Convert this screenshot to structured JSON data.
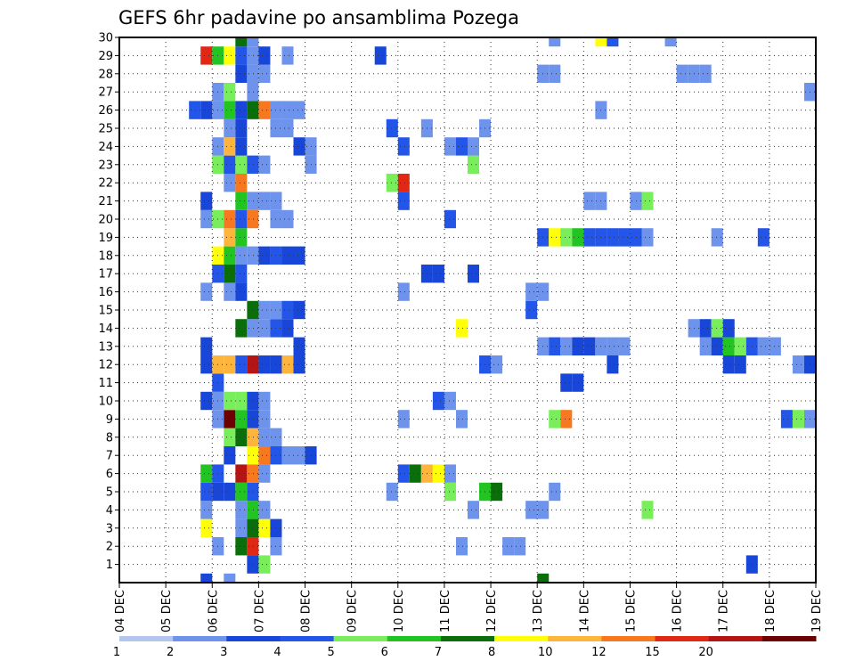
{
  "chart_data": {
    "type": "heatmap",
    "title": "GEFS 6hr padavine po ansamblima Pozega",
    "xlabel": "",
    "ylabel": "",
    "x_ticks": [
      "04 DEC",
      "05 DEC",
      "06 DEC",
      "07 DEC",
      "08 DEC",
      "09 DEC",
      "10 DEC",
      "11 DEC",
      "12 DEC",
      "13 DEC",
      "14 DEC",
      "15 DEC",
      "16 DEC",
      "17 DEC",
      "18 DEC",
      "19 DEC"
    ],
    "y_ticks": [
      "1",
      "2",
      "3",
      "4",
      "5",
      "6",
      "7",
      "8",
      "9",
      "10",
      "11",
      "12",
      "13",
      "14",
      "15",
      "16",
      "17",
      "18",
      "19",
      "20",
      "21",
      "22",
      "23",
      "24",
      "25",
      "26",
      "27",
      "28",
      "29",
      "30"
    ],
    "x_range_slots": [
      0,
      60
    ],
    "y_range_members": [
      0,
      30
    ],
    "grid": "dotted",
    "colorbar": {
      "levels": [
        "1",
        "2",
        "3",
        "4",
        "5",
        "6",
        "7",
        "8",
        "10",
        "12",
        "15",
        "20"
      ],
      "colors": [
        "#b4c6f0",
        "#6e93ec",
        "#1846d8",
        "#2255e8",
        "#78ee5a",
        "#22c422",
        "#0a6e0a",
        "#ffff0a",
        "#ffb53c",
        "#f7781e",
        "#e02814",
        "#b41414",
        "#6e0000"
      ]
    },
    "cells": [
      {
        "member": 1,
        "slot": 11,
        "bin": 2
      },
      {
        "member": 1,
        "slot": 12,
        "bin": 4
      },
      {
        "member": 1,
        "slot": 54,
        "bin": 2
      },
      {
        "member": 2,
        "slot": 8,
        "bin": 1
      },
      {
        "member": 2,
        "slot": 10,
        "bin": 6
      },
      {
        "member": 2,
        "slot": 11,
        "bin": 10
      },
      {
        "member": 2,
        "slot": 13,
        "bin": 1
      },
      {
        "member": 2,
        "slot": 29,
        "bin": 1
      },
      {
        "member": 2,
        "slot": 33,
        "bin": 1
      },
      {
        "member": 2,
        "slot": 34,
        "bin": 1
      },
      {
        "member": 3,
        "slot": 7,
        "bin": 7
      },
      {
        "member": 3,
        "slot": 10,
        "bin": 1
      },
      {
        "member": 3,
        "slot": 11,
        "bin": 6
      },
      {
        "member": 3,
        "slot": 12,
        "bin": 7
      },
      {
        "member": 3,
        "slot": 13,
        "bin": 2
      },
      {
        "member": 4,
        "slot": 7,
        "bin": 1
      },
      {
        "member": 4,
        "slot": 10,
        "bin": 1
      },
      {
        "member": 4,
        "slot": 11,
        "bin": 5
      },
      {
        "member": 4,
        "slot": 12,
        "bin": 1
      },
      {
        "member": 4,
        "slot": 30,
        "bin": 1
      },
      {
        "member": 4,
        "slot": 35,
        "bin": 1
      },
      {
        "member": 4,
        "slot": 36,
        "bin": 1
      },
      {
        "member": 4,
        "slot": 45,
        "bin": 4
      },
      {
        "member": 5,
        "slot": 7,
        "bin": 3
      },
      {
        "member": 5,
        "slot": 8,
        "bin": 2
      },
      {
        "member": 5,
        "slot": 9,
        "bin": 2
      },
      {
        "member": 5,
        "slot": 10,
        "bin": 5
      },
      {
        "member": 5,
        "slot": 11,
        "bin": 3
      },
      {
        "member": 5,
        "slot": 23,
        "bin": 1
      },
      {
        "member": 5,
        "slot": 28,
        "bin": 4
      },
      {
        "member": 5,
        "slot": 31,
        "bin": 5
      },
      {
        "member": 5,
        "slot": 32,
        "bin": 6
      },
      {
        "member": 5,
        "slot": 37,
        "bin": 1
      },
      {
        "member": 6,
        "slot": 7,
        "bin": 5
      },
      {
        "member": 6,
        "slot": 8,
        "bin": 3
      },
      {
        "member": 6,
        "slot": 10,
        "bin": 11
      },
      {
        "member": 6,
        "slot": 11,
        "bin": 9
      },
      {
        "member": 6,
        "slot": 12,
        "bin": 1
      },
      {
        "member": 6,
        "slot": 24,
        "bin": 3
      },
      {
        "member": 6,
        "slot": 25,
        "bin": 6
      },
      {
        "member": 6,
        "slot": 26,
        "bin": 8
      },
      {
        "member": 6,
        "slot": 27,
        "bin": 7
      },
      {
        "member": 6,
        "slot": 28,
        "bin": 1
      },
      {
        "member": 7,
        "slot": 9,
        "bin": 2
      },
      {
        "member": 7,
        "slot": 11,
        "bin": 7
      },
      {
        "member": 7,
        "slot": 12,
        "bin": 9
      },
      {
        "member": 7,
        "slot": 13,
        "bin": 3
      },
      {
        "member": 7,
        "slot": 14,
        "bin": 1
      },
      {
        "member": 7,
        "slot": 15,
        "bin": 1
      },
      {
        "member": 7,
        "slot": 16,
        "bin": 2
      },
      {
        "member": 8,
        "slot": 9,
        "bin": 4
      },
      {
        "member": 8,
        "slot": 10,
        "bin": 6
      },
      {
        "member": 8,
        "slot": 11,
        "bin": 8
      },
      {
        "member": 8,
        "slot": 12,
        "bin": 1
      },
      {
        "member": 8,
        "slot": 13,
        "bin": 1
      },
      {
        "member": 9,
        "slot": 8,
        "bin": 1
      },
      {
        "member": 9,
        "slot": 9,
        "bin": 12
      },
      {
        "member": 9,
        "slot": 10,
        "bin": 5
      },
      {
        "member": 9,
        "slot": 11,
        "bin": 2
      },
      {
        "member": 9,
        "slot": 12,
        "bin": 1
      },
      {
        "member": 9,
        "slot": 24,
        "bin": 1
      },
      {
        "member": 9,
        "slot": 29,
        "bin": 1
      },
      {
        "member": 9,
        "slot": 37,
        "bin": 4
      },
      {
        "member": 9,
        "slot": 38,
        "bin": 9
      },
      {
        "member": 9,
        "slot": 57,
        "bin": 3
      },
      {
        "member": 9,
        "slot": 58,
        "bin": 4
      },
      {
        "member": 9,
        "slot": 59,
        "bin": 1
      },
      {
        "member": 10,
        "slot": 7,
        "bin": 2
      },
      {
        "member": 10,
        "slot": 8,
        "bin": 1
      },
      {
        "member": 10,
        "slot": 9,
        "bin": 4
      },
      {
        "member": 10,
        "slot": 10,
        "bin": 4
      },
      {
        "member": 10,
        "slot": 11,
        "bin": 2
      },
      {
        "member": 10,
        "slot": 12,
        "bin": 1
      },
      {
        "member": 10,
        "slot": 27,
        "bin": 3
      },
      {
        "member": 10,
        "slot": 28,
        "bin": 1
      },
      {
        "member": 11,
        "slot": 8,
        "bin": 3
      },
      {
        "member": 11,
        "slot": 38,
        "bin": 2
      },
      {
        "member": 11,
        "slot": 39,
        "bin": 2
      },
      {
        "member": 12,
        "slot": 7,
        "bin": 2
      },
      {
        "member": 12,
        "slot": 8,
        "bin": 8
      },
      {
        "member": 12,
        "slot": 9,
        "bin": 8
      },
      {
        "member": 12,
        "slot": 10,
        "bin": 3
      },
      {
        "member": 12,
        "slot": 11,
        "bin": 11
      },
      {
        "member": 12,
        "slot": 12,
        "bin": 2
      },
      {
        "member": 12,
        "slot": 13,
        "bin": 2
      },
      {
        "member": 12,
        "slot": 14,
        "bin": 8
      },
      {
        "member": 12,
        "slot": 15,
        "bin": 2
      },
      {
        "member": 12,
        "slot": 31,
        "bin": 3
      },
      {
        "member": 12,
        "slot": 32,
        "bin": 1
      },
      {
        "member": 12,
        "slot": 42,
        "bin": 2
      },
      {
        "member": 12,
        "slot": 52,
        "bin": 2
      },
      {
        "member": 12,
        "slot": 53,
        "bin": 2
      },
      {
        "member": 12,
        "slot": 58,
        "bin": 1
      },
      {
        "member": 12,
        "slot": 59,
        "bin": 2
      },
      {
        "member": 13,
        "slot": 7,
        "bin": 2
      },
      {
        "member": 13,
        "slot": 15,
        "bin": 2
      },
      {
        "member": 13,
        "slot": 36,
        "bin": 1
      },
      {
        "member": 13,
        "slot": 37,
        "bin": 3
      },
      {
        "member": 13,
        "slot": 38,
        "bin": 1
      },
      {
        "member": 13,
        "slot": 39,
        "bin": 2
      },
      {
        "member": 13,
        "slot": 40,
        "bin": 2
      },
      {
        "member": 13,
        "slot": 41,
        "bin": 1
      },
      {
        "member": 13,
        "slot": 42,
        "bin": 1
      },
      {
        "member": 13,
        "slot": 43,
        "bin": 1
      },
      {
        "member": 13,
        "slot": 50,
        "bin": 1
      },
      {
        "member": 13,
        "slot": 51,
        "bin": 2
      },
      {
        "member": 13,
        "slot": 52,
        "bin": 5
      },
      {
        "member": 13,
        "slot": 53,
        "bin": 4
      },
      {
        "member": 13,
        "slot": 54,
        "bin": 3
      },
      {
        "member": 13,
        "slot": 55,
        "bin": 1
      },
      {
        "member": 13,
        "slot": 56,
        "bin": 1
      },
      {
        "member": 14,
        "slot": 10,
        "bin": 6
      },
      {
        "member": 14,
        "slot": 11,
        "bin": 1
      },
      {
        "member": 14,
        "slot": 12,
        "bin": 1
      },
      {
        "member": 14,
        "slot": 13,
        "bin": 3
      },
      {
        "member": 14,
        "slot": 14,
        "bin": 2
      },
      {
        "member": 14,
        "slot": 29,
        "bin": 7
      },
      {
        "member": 14,
        "slot": 49,
        "bin": 1
      },
      {
        "member": 14,
        "slot": 50,
        "bin": 2
      },
      {
        "member": 14,
        "slot": 51,
        "bin": 4
      },
      {
        "member": 14,
        "slot": 52,
        "bin": 2
      },
      {
        "member": 15,
        "slot": 11,
        "bin": 6
      },
      {
        "member": 15,
        "slot": 12,
        "bin": 1
      },
      {
        "member": 15,
        "slot": 13,
        "bin": 1
      },
      {
        "member": 15,
        "slot": 14,
        "bin": 3
      },
      {
        "member": 15,
        "slot": 15,
        "bin": 2
      },
      {
        "member": 15,
        "slot": 35,
        "bin": 3
      },
      {
        "member": 16,
        "slot": 7,
        "bin": 1
      },
      {
        "member": 16,
        "slot": 9,
        "bin": 1
      },
      {
        "member": 16,
        "slot": 10,
        "bin": 2
      },
      {
        "member": 16,
        "slot": 24,
        "bin": 1
      },
      {
        "member": 16,
        "slot": 35,
        "bin": 1
      },
      {
        "member": 16,
        "slot": 36,
        "bin": 1
      },
      {
        "member": 17,
        "slot": 8,
        "bin": 3
      },
      {
        "member": 17,
        "slot": 9,
        "bin": 6
      },
      {
        "member": 17,
        "slot": 10,
        "bin": 3
      },
      {
        "member": 17,
        "slot": 26,
        "bin": 2
      },
      {
        "member": 17,
        "slot": 27,
        "bin": 2
      },
      {
        "member": 17,
        "slot": 30,
        "bin": 2
      },
      {
        "member": 18,
        "slot": 8,
        "bin": 7
      },
      {
        "member": 18,
        "slot": 9,
        "bin": 5
      },
      {
        "member": 18,
        "slot": 10,
        "bin": 1
      },
      {
        "member": 18,
        "slot": 11,
        "bin": 1
      },
      {
        "member": 18,
        "slot": 12,
        "bin": 2
      },
      {
        "member": 18,
        "slot": 13,
        "bin": 3
      },
      {
        "member": 18,
        "slot": 14,
        "bin": 2
      },
      {
        "member": 18,
        "slot": 15,
        "bin": 2
      },
      {
        "member": 19,
        "slot": 9,
        "bin": 8
      },
      {
        "member": 19,
        "slot": 10,
        "bin": 5
      },
      {
        "member": 19,
        "slot": 36,
        "bin": 3
      },
      {
        "member": 19,
        "slot": 37,
        "bin": 7
      },
      {
        "member": 19,
        "slot": 38,
        "bin": 4
      },
      {
        "member": 19,
        "slot": 39,
        "bin": 5
      },
      {
        "member": 19,
        "slot": 40,
        "bin": 3
      },
      {
        "member": 19,
        "slot": 41,
        "bin": 3
      },
      {
        "member": 19,
        "slot": 42,
        "bin": 3
      },
      {
        "member": 19,
        "slot": 43,
        "bin": 3
      },
      {
        "member": 19,
        "slot": 44,
        "bin": 3
      },
      {
        "member": 19,
        "slot": 45,
        "bin": 1
      },
      {
        "member": 19,
        "slot": 51,
        "bin": 1
      },
      {
        "member": 19,
        "slot": 55,
        "bin": 3
      },
      {
        "member": 20,
        "slot": 7,
        "bin": 1
      },
      {
        "member": 20,
        "slot": 8,
        "bin": 4
      },
      {
        "member": 20,
        "slot": 9,
        "bin": 9
      },
      {
        "member": 20,
        "slot": 10,
        "bin": 3
      },
      {
        "member": 20,
        "slot": 11,
        "bin": 9
      },
      {
        "member": 20,
        "slot": 13,
        "bin": 1
      },
      {
        "member": 20,
        "slot": 14,
        "bin": 1
      },
      {
        "member": 20,
        "slot": 28,
        "bin": 3
      },
      {
        "member": 21,
        "slot": 7,
        "bin": 2
      },
      {
        "member": 21,
        "slot": 10,
        "bin": 5
      },
      {
        "member": 21,
        "slot": 11,
        "bin": 1
      },
      {
        "member": 21,
        "slot": 12,
        "bin": 1
      },
      {
        "member": 21,
        "slot": 13,
        "bin": 1
      },
      {
        "member": 21,
        "slot": 24,
        "bin": 3
      },
      {
        "member": 21,
        "slot": 40,
        "bin": 1
      },
      {
        "member": 21,
        "slot": 41,
        "bin": 1
      },
      {
        "member": 21,
        "slot": 44,
        "bin": 1
      },
      {
        "member": 21,
        "slot": 45,
        "bin": 4
      },
      {
        "member": 22,
        "slot": 9,
        "bin": 1
      },
      {
        "member": 22,
        "slot": 10,
        "bin": 9
      },
      {
        "member": 22,
        "slot": 23,
        "bin": 4
      },
      {
        "member": 22,
        "slot": 24,
        "bin": 10
      },
      {
        "member": 23,
        "slot": 8,
        "bin": 4
      },
      {
        "member": 23,
        "slot": 9,
        "bin": 3
      },
      {
        "member": 23,
        "slot": 10,
        "bin": 4
      },
      {
        "member": 23,
        "slot": 11,
        "bin": 3
      },
      {
        "member": 23,
        "slot": 12,
        "bin": 1
      },
      {
        "member": 23,
        "slot": 16,
        "bin": 1
      },
      {
        "member": 23,
        "slot": 30,
        "bin": 4
      },
      {
        "member": 24,
        "slot": 8,
        "bin": 1
      },
      {
        "member": 24,
        "slot": 9,
        "bin": 8
      },
      {
        "member": 24,
        "slot": 10,
        "bin": 2
      },
      {
        "member": 24,
        "slot": 15,
        "bin": 2
      },
      {
        "member": 24,
        "slot": 16,
        "bin": 1
      },
      {
        "member": 24,
        "slot": 24,
        "bin": 3
      },
      {
        "member": 24,
        "slot": 28,
        "bin": 1
      },
      {
        "member": 24,
        "slot": 29,
        "bin": 3
      },
      {
        "member": 24,
        "slot": 30,
        "bin": 1
      },
      {
        "member": 25,
        "slot": 9,
        "bin": 1
      },
      {
        "member": 25,
        "slot": 10,
        "bin": 2
      },
      {
        "member": 25,
        "slot": 13,
        "bin": 1
      },
      {
        "member": 25,
        "slot": 14,
        "bin": 1
      },
      {
        "member": 25,
        "slot": 23,
        "bin": 3
      },
      {
        "member": 25,
        "slot": 26,
        "bin": 1
      },
      {
        "member": 25,
        "slot": 31,
        "bin": 1
      },
      {
        "member": 26,
        "slot": 6,
        "bin": 3
      },
      {
        "member": 26,
        "slot": 7,
        "bin": 2
      },
      {
        "member": 26,
        "slot": 8,
        "bin": 1
      },
      {
        "member": 26,
        "slot": 9,
        "bin": 5
      },
      {
        "member": 26,
        "slot": 10,
        "bin": 2
      },
      {
        "member": 26,
        "slot": 11,
        "bin": 6
      },
      {
        "member": 26,
        "slot": 12,
        "bin": 9
      },
      {
        "member": 26,
        "slot": 13,
        "bin": 1
      },
      {
        "member": 26,
        "slot": 14,
        "bin": 1
      },
      {
        "member": 26,
        "slot": 15,
        "bin": 1
      },
      {
        "member": 26,
        "slot": 41,
        "bin": 1
      },
      {
        "member": 27,
        "slot": 8,
        "bin": 1
      },
      {
        "member": 27,
        "slot": 9,
        "bin": 4
      },
      {
        "member": 27,
        "slot": 11,
        "bin": 1
      },
      {
        "member": 27,
        "slot": 59,
        "bin": 1
      },
      {
        "member": 28,
        "slot": 10,
        "bin": 2
      },
      {
        "member": 28,
        "slot": 11,
        "bin": 1
      },
      {
        "member": 28,
        "slot": 12,
        "bin": 1
      },
      {
        "member": 28,
        "slot": 36,
        "bin": 1
      },
      {
        "member": 28,
        "slot": 37,
        "bin": 1
      },
      {
        "member": 28,
        "slot": 48,
        "bin": 1
      },
      {
        "member": 28,
        "slot": 49,
        "bin": 1
      },
      {
        "member": 28,
        "slot": 50,
        "bin": 1
      },
      {
        "member": 29,
        "slot": 7,
        "bin": 10
      },
      {
        "member": 29,
        "slot": 8,
        "bin": 5
      },
      {
        "member": 29,
        "slot": 9,
        "bin": 7
      },
      {
        "member": 29,
        "slot": 10,
        "bin": 3
      },
      {
        "member": 29,
        "slot": 11,
        "bin": 1
      },
      {
        "member": 29,
        "slot": 12,
        "bin": 2
      },
      {
        "member": 29,
        "slot": 14,
        "bin": 1
      },
      {
        "member": 29,
        "slot": 22,
        "bin": 2
      },
      {
        "member": 30,
        "slot": 10,
        "bin": 6
      },
      {
        "member": 30,
        "slot": 11,
        "bin": 1
      },
      {
        "member": 30,
        "slot": 37,
        "bin": 1
      },
      {
        "member": 30,
        "slot": 41,
        "bin": 7
      },
      {
        "member": 30,
        "slot": 42,
        "bin": 3
      },
      {
        "member": 30,
        "slot": 47,
        "bin": 1
      },
      {
        "member": 0,
        "slot": 7,
        "bin": 2
      },
      {
        "member": 0,
        "slot": 9,
        "bin": 1
      },
      {
        "member": 0,
        "slot": 36,
        "bin": 6
      }
    ]
  }
}
